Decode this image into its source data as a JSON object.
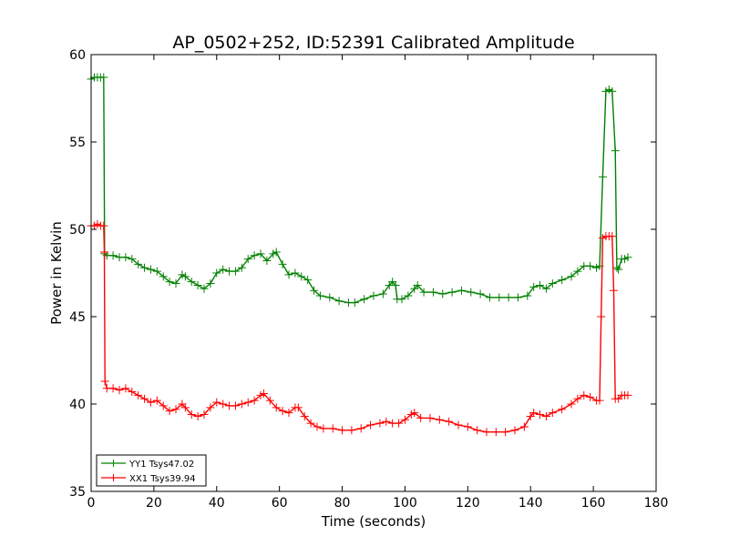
{
  "chart_data": {
    "type": "line",
    "title": "AP_0502+252, ID:52391 Calibrated Amplitude",
    "xlabel": "Time (seconds)",
    "ylabel": "Power in Kelvin",
    "xlim": [
      0,
      180
    ],
    "ylim": [
      35,
      60
    ],
    "xticks": [
      0,
      20,
      40,
      60,
      80,
      100,
      120,
      140,
      160,
      180
    ],
    "yticks": [
      35,
      40,
      45,
      50,
      55,
      60
    ],
    "grid": false,
    "legend_position": "lower-left",
    "marker": "+",
    "series": [
      {
        "name": "YY1 Tsys47.02",
        "color": "#008000",
        "points": [
          [
            0,
            58.6
          ],
          [
            1,
            58.7
          ],
          [
            2,
            58.7
          ],
          [
            3,
            58.7
          ],
          [
            4,
            58.7
          ],
          [
            4.3,
            48.6
          ],
          [
            5,
            48.5
          ],
          [
            7,
            48.5
          ],
          [
            9,
            48.4
          ],
          [
            11,
            48.4
          ],
          [
            13,
            48.3
          ],
          [
            15,
            48.0
          ],
          [
            17,
            47.8
          ],
          [
            19,
            47.7
          ],
          [
            21,
            47.6
          ],
          [
            23,
            47.3
          ],
          [
            25,
            47.0
          ],
          [
            27,
            46.9
          ],
          [
            29,
            47.4
          ],
          [
            30,
            47.3
          ],
          [
            32,
            47.0
          ],
          [
            34,
            46.8
          ],
          [
            36,
            46.6
          ],
          [
            38,
            46.9
          ],
          [
            40,
            47.5
          ],
          [
            42,
            47.7
          ],
          [
            44,
            47.6
          ],
          [
            46,
            47.6
          ],
          [
            48,
            47.8
          ],
          [
            50,
            48.3
          ],
          [
            52,
            48.5
          ],
          [
            54,
            48.6
          ],
          [
            56,
            48.2
          ],
          [
            58,
            48.6
          ],
          [
            59,
            48.7
          ],
          [
            61,
            48.0
          ],
          [
            63,
            47.4
          ],
          [
            65,
            47.5
          ],
          [
            67,
            47.3
          ],
          [
            69,
            47.1
          ],
          [
            71,
            46.5
          ],
          [
            73,
            46.2
          ],
          [
            76,
            46.1
          ],
          [
            79,
            45.9
          ],
          [
            82,
            45.8
          ],
          [
            84,
            45.8
          ],
          [
            87,
            46.0
          ],
          [
            90,
            46.2
          ],
          [
            93,
            46.3
          ],
          [
            95,
            46.8
          ],
          [
            96,
            47.0
          ],
          [
            97,
            46.8
          ],
          [
            97.5,
            46.0
          ],
          [
            99,
            46.0
          ],
          [
            101,
            46.2
          ],
          [
            103,
            46.6
          ],
          [
            104,
            46.8
          ],
          [
            106,
            46.4
          ],
          [
            109,
            46.4
          ],
          [
            112,
            46.3
          ],
          [
            115,
            46.4
          ],
          [
            118,
            46.5
          ],
          [
            121,
            46.4
          ],
          [
            124,
            46.3
          ],
          [
            127,
            46.1
          ],
          [
            130,
            46.1
          ],
          [
            133,
            46.1
          ],
          [
            136,
            46.1
          ],
          [
            139,
            46.2
          ],
          [
            141,
            46.7
          ],
          [
            143,
            46.8
          ],
          [
            145,
            46.6
          ],
          [
            147,
            46.9
          ],
          [
            150,
            47.1
          ],
          [
            153,
            47.3
          ],
          [
            155,
            47.6
          ],
          [
            157,
            47.9
          ],
          [
            159,
            47.9
          ],
          [
            161,
            47.8
          ],
          [
            162,
            47.9
          ],
          [
            163,
            53.0
          ],
          [
            164,
            57.9
          ],
          [
            165,
            58.0
          ],
          [
            166,
            57.9
          ],
          [
            167,
            54.5
          ],
          [
            167.5,
            47.8
          ],
          [
            168,
            47.7
          ],
          [
            169,
            48.3
          ],
          [
            170,
            48.3
          ],
          [
            171,
            48.4
          ]
        ]
      },
      {
        "name": "XX1 Tsys39.94",
        "color": "#ff0000",
        "points": [
          [
            0,
            50.2
          ],
          [
            1,
            50.2
          ],
          [
            2,
            50.3
          ],
          [
            3,
            50.2
          ],
          [
            4,
            50.2
          ],
          [
            4.2,
            48.7
          ],
          [
            4.4,
            41.3
          ],
          [
            5,
            40.9
          ],
          [
            7,
            40.9
          ],
          [
            9,
            40.8
          ],
          [
            11,
            40.9
          ],
          [
            13,
            40.7
          ],
          [
            15,
            40.5
          ],
          [
            17,
            40.3
          ],
          [
            19,
            40.1
          ],
          [
            21,
            40.2
          ],
          [
            23,
            39.9
          ],
          [
            25,
            39.6
          ],
          [
            27,
            39.7
          ],
          [
            29,
            40.0
          ],
          [
            30,
            39.8
          ],
          [
            32,
            39.4
          ],
          [
            34,
            39.3
          ],
          [
            36,
            39.4
          ],
          [
            38,
            39.8
          ],
          [
            40,
            40.1
          ],
          [
            42,
            40.0
          ],
          [
            44,
            39.9
          ],
          [
            46,
            39.9
          ],
          [
            48,
            40.0
          ],
          [
            50,
            40.1
          ],
          [
            52,
            40.2
          ],
          [
            54,
            40.5
          ],
          [
            55,
            40.6
          ],
          [
            57,
            40.2
          ],
          [
            59,
            39.8
          ],
          [
            61,
            39.6
          ],
          [
            63,
            39.5
          ],
          [
            65,
            39.8
          ],
          [
            66,
            39.8
          ],
          [
            68,
            39.3
          ],
          [
            70,
            38.9
          ],
          [
            72,
            38.7
          ],
          [
            74,
            38.6
          ],
          [
            77,
            38.6
          ],
          [
            80,
            38.5
          ],
          [
            83,
            38.5
          ],
          [
            86,
            38.6
          ],
          [
            89,
            38.8
          ],
          [
            92,
            38.9
          ],
          [
            94,
            39.0
          ],
          [
            96,
            38.9
          ],
          [
            98,
            38.9
          ],
          [
            100,
            39.1
          ],
          [
            102,
            39.4
          ],
          [
            103,
            39.5
          ],
          [
            105,
            39.2
          ],
          [
            108,
            39.2
          ],
          [
            111,
            39.1
          ],
          [
            114,
            39.0
          ],
          [
            117,
            38.8
          ],
          [
            120,
            38.7
          ],
          [
            123,
            38.5
          ],
          [
            126,
            38.4
          ],
          [
            129,
            38.4
          ],
          [
            132,
            38.4
          ],
          [
            135,
            38.5
          ],
          [
            138,
            38.7
          ],
          [
            140,
            39.3
          ],
          [
            141,
            39.5
          ],
          [
            143,
            39.4
          ],
          [
            145,
            39.3
          ],
          [
            147,
            39.5
          ],
          [
            150,
            39.7
          ],
          [
            153,
            40.0
          ],
          [
            155,
            40.3
          ],
          [
            157,
            40.5
          ],
          [
            159,
            40.4
          ],
          [
            161,
            40.2
          ],
          [
            162,
            40.2
          ],
          [
            162.5,
            45.0
          ],
          [
            163,
            49.5
          ],
          [
            164,
            49.6
          ],
          [
            165,
            49.6
          ],
          [
            166,
            49.6
          ],
          [
            166.5,
            46.5
          ],
          [
            167,
            40.3
          ],
          [
            168,
            40.3
          ],
          [
            169,
            40.5
          ],
          [
            170,
            40.5
          ],
          [
            171,
            40.5
          ]
        ]
      }
    ]
  }
}
